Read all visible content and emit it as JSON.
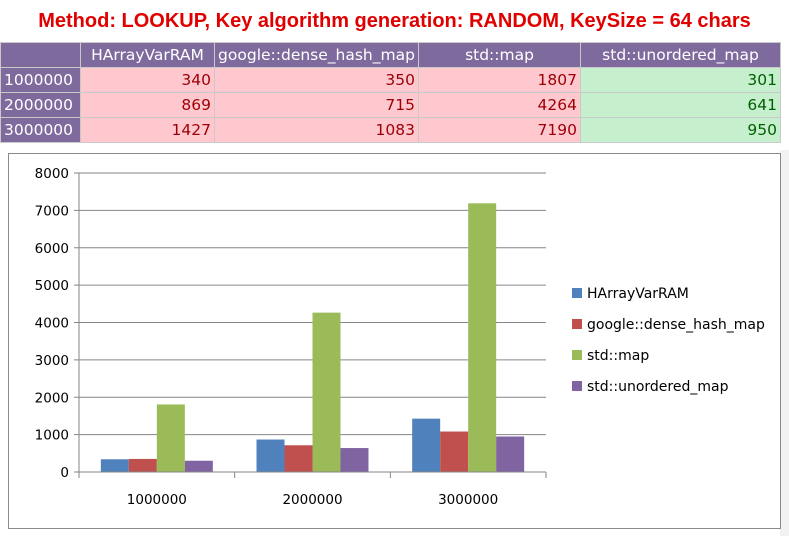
{
  "title": "Method: LOOKUP, Key algorithm generation: RANDOM, KeySize = 64 chars",
  "table": {
    "headers": [
      "",
      "HArrayVarRAM",
      "google::dense_hash_map",
      "std::map",
      "std::unordered_map"
    ],
    "rows": [
      {
        "label": "1000000",
        "values": [
          "340",
          "350",
          "1807",
          "301"
        ]
      },
      {
        "label": "2000000",
        "values": [
          "869",
          "715",
          "4264",
          "641"
        ]
      },
      {
        "label": "3000000",
        "values": [
          "1427",
          "1083",
          "7190",
          "950"
        ]
      }
    ]
  },
  "colors": {
    "header_bg": "#7f6a9e",
    "pink_bg": "#ffc7ce",
    "pink_text": "#9c0006",
    "green_bg": "#c6efce",
    "green_text": "#006100"
  },
  "chart_data": {
    "type": "bar",
    "categories": [
      "1000000",
      "2000000",
      "3000000"
    ],
    "series": [
      {
        "name": "HArrayVarRAM",
        "values": [
          340,
          869,
          1427
        ],
        "color": "#4f81bd"
      },
      {
        "name": "google::dense_hash_map",
        "values": [
          350,
          715,
          1083
        ],
        "color": "#c0504d"
      },
      {
        "name": "std::map",
        "values": [
          1807,
          4264,
          7190
        ],
        "color": "#9bbb59"
      },
      {
        "name": "std::unordered_map",
        "values": [
          301,
          641,
          950
        ],
        "color": "#8064a2"
      }
    ],
    "ylim": [
      0,
      8000
    ],
    "yticks": [
      "0",
      "1000",
      "2000",
      "3000",
      "4000",
      "5000",
      "6000",
      "7000",
      "8000"
    ],
    "grid": true,
    "legend_position": "right"
  }
}
